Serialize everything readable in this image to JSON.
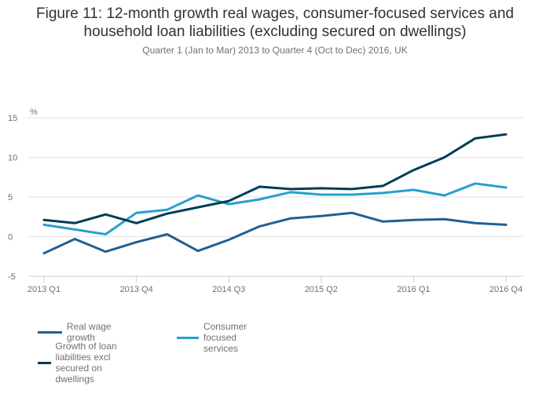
{
  "chart_data": {
    "type": "line",
    "title": "Figure 11: 12-month growth real wages, consumer-focused services and household loan liabilities (excluding secured on dwellings)",
    "subtitle": "Quarter 1 (Jan to Mar) 2013 to Quarter 4 (Oct to Dec) 2016, UK",
    "ylabel": "%",
    "xlabel": "",
    "ylim": [
      -5,
      15
    ],
    "yticks": [
      "15",
      "10",
      "5",
      "0",
      "-5"
    ],
    "ytick_values": [
      15,
      10,
      5,
      0,
      -5
    ],
    "x": [
      "2013 Q1",
      "2013 Q2",
      "2013 Q3",
      "2013 Q4",
      "2014 Q1",
      "2014 Q2",
      "2014 Q3",
      "2014 Q4",
      "2015 Q1",
      "2015 Q2",
      "2015 Q3",
      "2015 Q4",
      "2016 Q1",
      "2016 Q2",
      "2016 Q3",
      "2016 Q4"
    ],
    "xtick_labels": [
      "2013 Q1",
      "2013 Q4",
      "2014 Q3",
      "2015 Q2",
      "2016 Q1",
      "2016 Q4"
    ],
    "xtick_indices": [
      0,
      3,
      6,
      9,
      12,
      15
    ],
    "grid": true,
    "legend_position": "bottom-left",
    "series": [
      {
        "name": "Real wage growth",
        "color": "#206095",
        "values": [
          -2.1,
          -0.3,
          -1.9,
          -0.7,
          0.3,
          -1.8,
          -0.4,
          1.3,
          2.3,
          2.6,
          3.0,
          1.9,
          2.1,
          2.2,
          1.7,
          1.5
        ]
      },
      {
        "name": "Consumer focused services",
        "color": "#27a0cc",
        "values": [
          1.5,
          0.9,
          0.3,
          3.0,
          3.4,
          5.2,
          4.1,
          4.7,
          5.6,
          5.3,
          5.3,
          5.5,
          5.9,
          5.2,
          6.7,
          6.2
        ]
      },
      {
        "name": "Growth of loan liabilities excl secured on dwellings",
        "color": "#003c57",
        "values": [
          2.1,
          1.7,
          2.8,
          1.7,
          2.9,
          3.7,
          4.5,
          6.3,
          6.0,
          6.1,
          6.0,
          6.4,
          8.4,
          10.0,
          12.4,
          12.9
        ]
      }
    ]
  }
}
